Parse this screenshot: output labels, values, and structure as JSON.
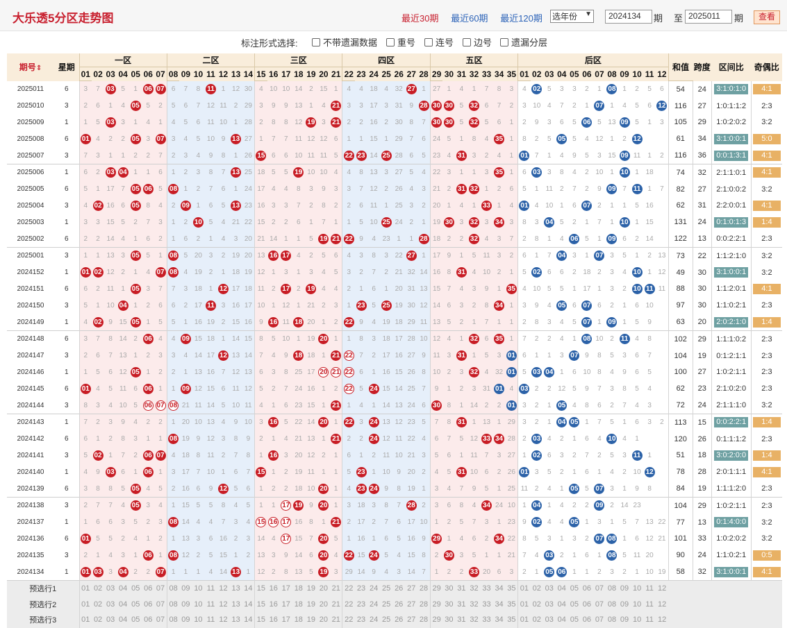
{
  "title": "大乐透5分区走势图",
  "period_links": [
    {
      "label": "最近30期",
      "active": true
    },
    {
      "label": "最近60期",
      "active": false
    },
    {
      "label": "最近120期",
      "active": false
    }
  ],
  "year_select": "选年份",
  "from_issue": "2024134",
  "label_period": "期",
  "label_to": "至",
  "to_issue": "2025011",
  "query_button": "查看",
  "options_label": "标注形式选择:",
  "options": [
    "不带遗漏数据",
    "重号",
    "连号",
    "边号",
    "遗漏分层"
  ],
  "header": {
    "issue": "期号",
    "week": "星期",
    "zones": [
      "一区",
      "二区",
      "三区",
      "四区",
      "五区",
      "后区"
    ],
    "sum": "和值",
    "span": "跨度",
    "ratio": "区间比",
    "oddeven": "奇偶比"
  },
  "rows": [
    {
      "issue": "2025011",
      "week": "6",
      "cells": "3|7|R03|5|1|R06|R07|6|7|8|R11|1|12|30|4|10|10|14|2|15|1|4|4|18|4|32|R27|1|27|1|4|1|7|8|3|4|B02|5|3|3|2|1|B08|1|2|5|6|1",
      "sum": "54",
      "span": "24",
      "ratio": "3:1:0:1:0",
      "ratio_hl": true,
      "oe": "4:1",
      "oe_hl": true
    },
    {
      "issue": "2025010",
      "week": "3",
      "cells": "2|6|1|4|R05|5|2|5|6|7|12|11|2|29|3|9|9|13|1|4|R21|3|3|17|3|31|9|R28|R30|R30|5|R32|6|7|2|3|10|4|7|2|1|B07|1|4|5|6|B12",
      "sum": "116",
      "span": "27",
      "ratio": "1:0:1:1:2",
      "ratio_hl": false,
      "oe": "2:3",
      "oe_hl": false
    },
    {
      "issue": "2025009",
      "week": "1",
      "cells": "1|5|R03|3|1|4|1|4|5|6|11|10|1|28|2|8|8|12|R19|3|R21|2|2|16|2|30|8|7|R30|R30|5|R32|5|6|1|2|9|3|6|5|B06|5|13|B09|5|1|3",
      "sum": "105",
      "span": "29",
      "ratio": "1:0:2:0:2",
      "ratio_hl": false,
      "oe": "3:2",
      "oe_hl": false
    },
    {
      "issue": "2025008",
      "week": "6",
      "cells": "R01|4|2|2|R05|3|R07|3|4|5|10|9|R13|27|1|7|7|11|12|12|6|1|1|15|1|29|7|6|24|5|1|8|4|R35|1|8|2|5|B05|5|4|12|1|2|B12",
      "sum": "61",
      "span": "34",
      "ratio": "3:1:0:0:1",
      "ratio_hl": true,
      "oe": "5:0",
      "oe_hl": true
    },
    {
      "issue": "2025007",
      "week": "3",
      "cells": "7|3|1|1|2|2|7|2|3|4|9|8|1|26|R15|6|6|10|11|11|5|R22|R23|14|R25|28|6|5|23|4|R31|3|2|4|1|B01|7|1|4|9|5|3|15|B09|11|1|2|19",
      "sum": "116",
      "span": "36",
      "ratio": "0:0:1:3:1",
      "ratio_hl": true,
      "oe": "4:1",
      "oe_hl": true
    },
    {
      "issue": "2025006",
      "week": "1",
      "cells": "6|2|R03|R04|1|1|6|1|2|3|8|7|R13|25|18|5|5|R19|10|10|4|4|8|13|3|27|5|4|22|3|1|1|3|R35|1|6|B03|3|8|4|2|10|1|B10|1|18",
      "sum": "74",
      "span": "32",
      "ratio": "2:1:1:0:1",
      "ratio_hl": false,
      "oe": "4:1",
      "oe_hl": true
    },
    {
      "issue": "2025005",
      "week": "6",
      "cells": "5|1|17|7|R05|R06|5|R08|1|2|7|6|1|24|17|4|4|8|3|9|3|3|7|12|2|26|4|3|21|2|R31|R32|1|2|6|5|1|11|2|7|2|9|B09|7|B11|1|7",
      "sum": "82",
      "span": "27",
      "ratio": "2:1:0:0:2",
      "ratio_hl": false,
      "oe": "3:2",
      "oe_hl": false
    },
    {
      "issue": "2025004",
      "week": "3",
      "cells": "4|R02|16|6|R05|8|4|2|R09|1|6|5|R13|23|16|3|3|7|2|8|2|2|6|11|1|25|3|2|20|1|4|1|R33|1|4|B01|4|10|1|6|B07|2|1|1|5|16",
      "sum": "62",
      "span": "31",
      "ratio": "2:2:0:0:1",
      "ratio_hl": false,
      "oe": "4:1",
      "oe_hl": true
    },
    {
      "issue": "2025003",
      "week": "1",
      "cells": "3|3|15|5|2|7|3|1|2|R10|5|4|21|22|15|2|2|6|1|7|1|1|5|10|R25|24|2|1|19|R30|3|R32|3|R34|3|8|3|B04|5|2|1|7|1|B10|1|15",
      "sum": "131",
      "span": "24",
      "ratio": "0:1:0:1:3",
      "ratio_hl": true,
      "oe": "1:4",
      "oe_hl": true
    },
    {
      "issue": "2025002",
      "week": "6",
      "cells": "2|2|14|4|1|6|2|1|6|2|1|4|3|20|21|14|1|1|5|R19|R21|R22|9|4|23|1|1|R28|18|2|2|R32|4|3|7|2|8|1|4|B06|5|1|B09|6|2|14",
      "sum": "122",
      "span": "13",
      "ratio": "0:0:2:2:1",
      "ratio_hl": false,
      "oe": "2:3",
      "oe_hl": false
    },
    {
      "issue": "2025001",
      "week": "3",
      "cells": "1|1|13|3|R05|5|1|R08|5|20|3|2|19|20|13|R16|R17|4|2|5|6|4|3|8|3|22|R27|1|17|9|1|5|11|3|2|6|1|7|B04|3|1|B07|3|5|1|2|13",
      "sum": "73",
      "span": "22",
      "ratio": "1:1:2:1:0",
      "ratio_hl": false,
      "oe": "3:2",
      "oe_hl": false
    },
    {
      "issue": "2024152",
      "week": "1",
      "cells": "R01|R02|12|2|1|4|R07|R08|4|19|2|1|18|19|12|1|3|1|3|4|5|3|2|7|2|21|32|14|16|8|R31|4|10|2|1|5|B02|6|6|2|18|2|3|4|B10|1|12",
      "sum": "49",
      "span": "30",
      "ratio": "3:1:0:0:1",
      "ratio_hl": true,
      "oe": "3:2",
      "oe_hl": false
    },
    {
      "issue": "2024151",
      "week": "6",
      "cells": "6|2|11|1|R05|3|7|7|3|18|1|R12|17|18|11|2|R17|2|R19|4|4|2|1|6|1|20|31|13|15|7|4|3|9|1|R35|4|10|5|5|1|17|1|3|2|B10|B11|11",
      "sum": "88",
      "span": "30",
      "ratio": "1:1:2:0:1",
      "ratio_hl": false,
      "oe": "4:1",
      "oe_hl": true
    },
    {
      "issue": "2024150",
      "week": "3",
      "cells": "5|1|10|R04|1|2|6|6|2|17|R11|3|16|17|10|1|12|1|21|2|3|1|R23|5|R25|19|30|12|14|6|3|2|8|R34|1|3|9|4|B05|6|B07|6|2|1|6|10",
      "sum": "97",
      "span": "30",
      "ratio": "1:1:0:2:1",
      "ratio_hl": false,
      "oe": "2:3",
      "oe_hl": false
    },
    {
      "issue": "2024149",
      "week": "1",
      "cells": "4|R02|9|15|R05|1|5|5|1|16|19|2|15|16|9|R16|11|R18|20|1|2|R22|9|4|19|18|29|11|13|5|2|1|7|1|1|2|8|3|4|5|B07|1|B09|1|5|9",
      "sum": "63",
      "span": "20",
      "ratio": "2:0:2:1:0",
      "ratio_hl": true,
      "oe": "1:4",
      "oe_hl": true
    },
    {
      "issue": "2024148",
      "week": "6",
      "cells": "3|7|8|14|2|R06|4|4|R09|15|18|1|14|15|8|5|10|1|19|R20|1|1|8|3|18|17|28|10|12|4|1|R32|6|R35|1|7|2|2|4|1|B08|10|2|B11|4|8",
      "sum": "102",
      "span": "29",
      "ratio": "1:1:1:0:2",
      "ratio_hl": false,
      "oe": "2:3",
      "oe_hl": false
    },
    {
      "issue": "2024147",
      "week": "3",
      "cells": "2|6|7|13|1|2|3|3|4|14|17|R12|13|14|7|4|9|R18|18|1|R21|RR22|7|2|17|16|27|9|11|3|R31|1|5|3|B01|6|1|1|3|B07|9|8|5|3|6|7",
      "sum": "104",
      "span": "19",
      "ratio": "0:1:2:1:1",
      "ratio_hl": false,
      "oe": "2:3",
      "oe_hl": false
    },
    {
      "issue": "2024146",
      "week": "1",
      "cells": "1|5|6|12|R05|1|2|2|1|13|16|7|12|13|6|3|8|25|17|RR20|RR21|RR22|6|1|16|15|26|8|10|2|3|R32|4|32|B01|5|B03|B04|1|6|10|8|4|9|6|5",
      "sum": "100",
      "span": "27",
      "ratio": "1:0:2:1:1",
      "ratio_hl": false,
      "oe": "2:3",
      "oe_hl": false
    },
    {
      "issue": "2024145",
      "week": "6",
      "cells": "R01|4|5|11|6|R06|1|1|R09|12|15|6|11|12|5|2|7|24|16|1|2|RR22|5|R24|15|14|25|7|9|1|2|3|31|B01|4|B03|2|2|12|5|9|7|3|8|5|4",
      "sum": "62",
      "span": "23",
      "ratio": "2:1:0:2:0",
      "ratio_hl": false,
      "oe": "2:3",
      "oe_hl": false
    },
    {
      "issue": "2024144",
      "week": "3",
      "cells": "8|3|4|10|5|RR06|RR07|RR08|21|11|14|5|10|11|4|1|6|23|15|1|R21|1|4|1|14|13|24|6|R30|8|1|14|2|2|B01|3|2|1|B05|4|8|6|2|7|4|3",
      "sum": "72",
      "span": "24",
      "ratio": "2:1:1:1:0",
      "ratio_hl": false,
      "oe": "3:2",
      "oe_hl": false
    },
    {
      "issue": "2024143",
      "week": "1",
      "cells": "7|2|3|9|4|2|2|1|20|10|13|4|9|10|3|R16|5|22|14|R20|1|R22|3|R24|13|12|23|5|7|8|R31|1|13|1|29|3|2|1|B04|B05|1|7|5|1|6|3|2",
      "sum": "113",
      "span": "15",
      "ratio": "0:0:2:2:1",
      "ratio_hl": true,
      "oe": "1:4",
      "oe_hl": true
    },
    {
      "issue": "2024142",
      "week": "6",
      "cells": "6|1|2|8|3|1|1|R08|19|9|12|3|8|9|2|1|4|21|13|1|R21|2|2|R24|12|11|22|4|6|7|5|12|R33|R34|28|2|B03|4|2|1|6|4|B10|4|1",
      "sum": "120",
      "span": "26",
      "ratio": "0:1:1:1:2",
      "ratio_hl": false,
      "oe": "2:3",
      "oe_hl": false
    },
    {
      "issue": "2024141",
      "week": "3",
      "cells": "5|R02|1|7|2|R06|R07|4|18|8|11|2|7|8|1|R16|3|20|12|2|1|6|1|2|11|10|21|3|5|6|1|11|7|3|27|1|B02|6|3|2|7|2|5|3|B11|1",
      "sum": "51",
      "span": "18",
      "ratio": "3:0:2:0:0",
      "ratio_hl": true,
      "oe": "1:4",
      "oe_hl": true
    },
    {
      "issue": "2024140",
      "week": "1",
      "cells": "4|9|R03|6|1|R06|1|3|17|7|10|1|6|7|R15|1|2|19|11|1|1|5|R23|1|10|9|20|2|4|5|R31|10|6|2|26|B01|3|5|2|1|6|1|4|2|10|B12",
      "sum": "78",
      "span": "28",
      "ratio": "2:0:1:1:1",
      "ratio_hl": false,
      "oe": "4:1",
      "oe_hl": true
    },
    {
      "issue": "2024139",
      "week": "6",
      "cells": "3|8|8|5|R05|4|5|2|16|6|9|R12|5|6|1|2|2|18|10|R20|1|4|R23|R24|9|8|19|1|3|4|7|9|5|1|25|11|2|4|1|B05|5|B07|3|1|9|8",
      "sum": "84",
      "span": "19",
      "ratio": "1:1:1:2:0",
      "ratio_hl": false,
      "oe": "2:3",
      "oe_hl": false
    },
    {
      "issue": "2024138",
      "week": "3",
      "cells": "2|7|7|4|R05|3|4|1|15|5|5|8|4|5|1|1|RR17|R19|9|R20|1|3|18|3|8|7|R28|2|3|6|8|4|R34|24|10|1|B04|1|4|2|2|B09|2|14|23",
      "sum": "104",
      "span": "29",
      "ratio": "1:0:2:1:1",
      "ratio_hl": false,
      "oe": "2:3",
      "oe_hl": false
    },
    {
      "issue": "2024137",
      "week": "1",
      "cells": "1|6|6|3|5|2|3|R08|14|4|4|7|3|4|RR15|RR16|RR17|16|8|1|R21|2|17|2|7|6|17|10|1|2|5|7|3|1|23|9|B02|4|4|B05|1|3|1|5|7|13|22",
      "sum": "77",
      "span": "13",
      "ratio": "0:1:4:0:0",
      "ratio_hl": true,
      "oe": "3:2",
      "oe_hl": false
    },
    {
      "issue": "2024136",
      "week": "6",
      "cells": "R01|5|5|2|4|1|2|1|13|3|6|16|2|3|14|4|RR17|15|7|R20|5|1|16|1|6|5|16|9|R29|1|4|6|2|R34|22|8|5|3|1|3|2|B07|B08|1|6|12|21",
      "sum": "101",
      "span": "33",
      "ratio": "1:0:2:0:2",
      "ratio_hl": false,
      "oe": "3:2",
      "oe_hl": false
    },
    {
      "issue": "2024135",
      "week": "3",
      "cells": "2|1|4|3|1|R06|1|R08|12|2|5|15|1|2|13|3|9|14|6|R20|4|R22|15|R24|5|4|15|8|2|R30|3|5|1|1|21|7|4|B03|2|1|6|1|B08|5|11|20",
      "sum": "90",
      "span": "24",
      "ratio": "1:1:0:2:1",
      "ratio_hl": false,
      "oe": "0:5",
      "oe_hl": true
    },
    {
      "issue": "2024134",
      "week": "1",
      "cells": "R01|R03|3|R04|2|2|R07|1|1|1|4|14|R13|1|12|2|8|13|5|R19|3|29|14|9|4|3|14|7|1|2|2|R33|20|6|3|2|1|B05|B06|1|1|2|3|2|1|10|19",
      "sum": "58",
      "span": "32",
      "ratio": "3:1:0:0:1",
      "ratio_hl": true,
      "oe": "4:1",
      "oe_hl": true
    }
  ],
  "preselect": [
    "预选行1",
    "预选行2",
    "预选行3"
  ]
}
